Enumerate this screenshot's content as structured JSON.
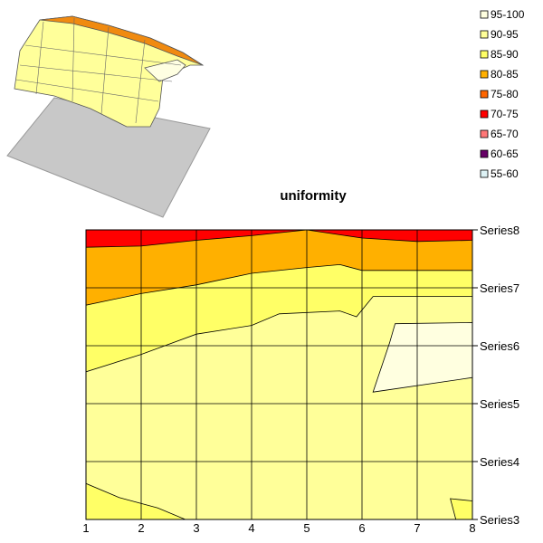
{
  "chart_data": {
    "type": "contour",
    "title": "uniformity",
    "x": [
      1,
      2,
      3,
      4,
      5,
      6,
      7,
      8
    ],
    "series_axis": [
      "Series3",
      "Series4",
      "Series5",
      "Series6",
      "Series7",
      "Series8"
    ],
    "legend": [
      {
        "label": "95-100",
        "color": "#FFFFE0"
      },
      {
        "label": "90-95",
        "color": "#FFFF99"
      },
      {
        "label": "85-90",
        "color": "#FFFF66"
      },
      {
        "label": "80-85",
        "color": "#FFB000"
      },
      {
        "label": "75-80",
        "color": "#FF6600"
      },
      {
        "label": "70-75",
        "color": "#FF0000"
      },
      {
        "label": "65-70",
        "color": "#FF7777"
      },
      {
        "label": "60-65",
        "color": "#660066"
      },
      {
        "label": "55-60",
        "color": "#DDF2F5"
      }
    ],
    "legend_position": "top-right",
    "contours": [
      {
        "level": "70-75",
        "upper_boundary": [
          [
            1,
            7.7
          ],
          [
            2,
            7.72
          ],
          [
            3,
            7.82
          ],
          [
            4,
            7.9
          ],
          [
            5,
            8.0
          ],
          [
            6,
            7.86
          ],
          [
            7,
            7.8
          ],
          [
            8,
            7.82
          ]
        ]
      },
      {
        "level": "80-85",
        "upper_boundary": [
          [
            1,
            6.7
          ],
          [
            2,
            6.9
          ],
          [
            3,
            7.05
          ],
          [
            4,
            7.25
          ],
          [
            5,
            7.35
          ],
          [
            5.6,
            7.4
          ],
          [
            6,
            7.3
          ],
          [
            7,
            7.3
          ],
          [
            8,
            7.3
          ]
        ]
      },
      {
        "level": "85-90",
        "upper_boundary": [
          [
            1,
            5.55
          ],
          [
            2,
            5.85
          ],
          [
            3,
            6.2
          ],
          [
            4,
            6.35
          ],
          [
            4.5,
            6.55
          ],
          [
            5.6,
            6.6
          ],
          [
            5.9,
            6.5
          ],
          [
            6.2,
            6.85
          ],
          [
            8,
            6.85
          ]
        ]
      },
      {
        "level": "95-100",
        "region": [
          [
            6.2,
            5.2
          ],
          [
            6.5,
            6.05
          ],
          [
            6.6,
            6.38
          ],
          [
            8,
            6.4
          ],
          [
            8,
            5.45
          ]
        ]
      },
      {
        "level": "85-90",
        "lower_left_region": [
          [
            1,
            3.62
          ],
          [
            1.6,
            3.38
          ],
          [
            2.3,
            3.2
          ],
          [
            2.8,
            3.0
          ],
          [
            1,
            3.0
          ]
        ]
      },
      {
        "level": "85-90",
        "lower_right_region": [
          [
            7.6,
            3.36
          ],
          [
            8,
            3.32
          ],
          [
            8,
            3.0
          ],
          [
            7.7,
            3.0
          ]
        ]
      }
    ],
    "grid": true
  }
}
